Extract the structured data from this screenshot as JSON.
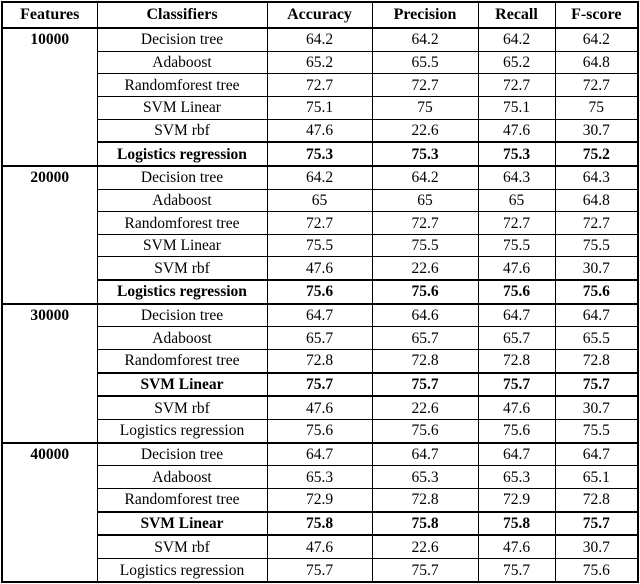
{
  "table": {
    "columns": [
      "Features",
      "Classifiers",
      "Accuracy",
      "Precision",
      "Recall",
      "F-score"
    ],
    "value_fields": [
      "accuracy",
      "precision",
      "recall",
      "fscore"
    ],
    "colors": {
      "border": "#000000",
      "text": "#000000",
      "background": "#ffffff"
    },
    "groups": [
      {
        "features": "10000",
        "rows": [
          {
            "classifier": "Decision tree",
            "values": [
              "64.2",
              "64.2",
              "64.2",
              "64.2"
            ],
            "bold": false
          },
          {
            "classifier": "Adaboost",
            "values": [
              "65.2",
              "65.5",
              "65.2",
              "64.8"
            ],
            "bold": false
          },
          {
            "classifier": "Randomforest tree",
            "values": [
              "72.7",
              "72.7",
              "72.7",
              "72.7"
            ],
            "bold": false
          },
          {
            "classifier": "SVM Linear",
            "values": [
              "75.1",
              "75",
              "75.1",
              "75"
            ],
            "bold": false
          },
          {
            "classifier": "SVM rbf",
            "values": [
              "47.6",
              "22.6",
              "47.6",
              "30.7"
            ],
            "bold": false
          },
          {
            "classifier": "Logistics regression",
            "values": [
              "75.3",
              "75.3",
              "75.3",
              "75.2"
            ],
            "bold": true
          }
        ]
      },
      {
        "features": "20000",
        "rows": [
          {
            "classifier": "Decision tree",
            "values": [
              "64.2",
              "64.2",
              "64.3",
              "64.3"
            ],
            "bold": false
          },
          {
            "classifier": "Adaboost",
            "values": [
              "65",
              "65",
              "65",
              "64.8"
            ],
            "bold": false
          },
          {
            "classifier": "Randomforest tree",
            "values": [
              "72.7",
              "72.7",
              "72.7",
              "72.7"
            ],
            "bold": false
          },
          {
            "classifier": "SVM Linear",
            "values": [
              "75.5",
              "75.5",
              "75.5",
              "75.5"
            ],
            "bold": false
          },
          {
            "classifier": "SVM rbf",
            "values": [
              "47.6",
              "22.6",
              "47.6",
              "30.7"
            ],
            "bold": false
          },
          {
            "classifier": "Logistics regression",
            "values": [
              "75.6",
              "75.6",
              "75.6",
              "75.6"
            ],
            "bold": true
          }
        ]
      },
      {
        "features": "30000",
        "rows": [
          {
            "classifier": "Decision tree",
            "values": [
              "64.7",
              "64.6",
              "64.7",
              "64.7"
            ],
            "bold": false
          },
          {
            "classifier": "Adaboost",
            "values": [
              "65.7",
              "65.7",
              "65.7",
              "65.5"
            ],
            "bold": false
          },
          {
            "classifier": "Randomforest tree",
            "values": [
              "72.8",
              "72.8",
              "72.8",
              "72.8"
            ],
            "bold": false
          },
          {
            "classifier": "SVM Linear",
            "values": [
              "75.7",
              "75.7",
              "75.7",
              "75.7"
            ],
            "bold": true
          },
          {
            "classifier": "SVM rbf",
            "values": [
              "47.6",
              "22.6",
              "47.6",
              "30.7"
            ],
            "bold": false
          },
          {
            "classifier": "Logistics regression",
            "values": [
              "75.6",
              "75.6",
              "75.6",
              "75.5"
            ],
            "bold": false
          }
        ]
      },
      {
        "features": "40000",
        "rows": [
          {
            "classifier": "Decision tree",
            "values": [
              "64.7",
              "64.7",
              "64.7",
              "64.7"
            ],
            "bold": false
          },
          {
            "classifier": "Adaboost",
            "values": [
              "65.3",
              "65.3",
              "65.3",
              "65.1"
            ],
            "bold": false
          },
          {
            "classifier": "Randomforest tree",
            "values": [
              "72.9",
              "72.8",
              "72.9",
              "72.8"
            ],
            "bold": false
          },
          {
            "classifier": "SVM Linear",
            "values": [
              "75.8",
              "75.8",
              "75.8",
              "75.7"
            ],
            "bold": true
          },
          {
            "classifier": "SVM rbf",
            "values": [
              "47.6",
              "22.6",
              "47.6",
              "30.7"
            ],
            "bold": false
          },
          {
            "classifier": "Logistics regression",
            "values": [
              "75.7",
              "75.7",
              "75.7",
              "75.6"
            ],
            "bold": false
          }
        ]
      }
    ]
  }
}
